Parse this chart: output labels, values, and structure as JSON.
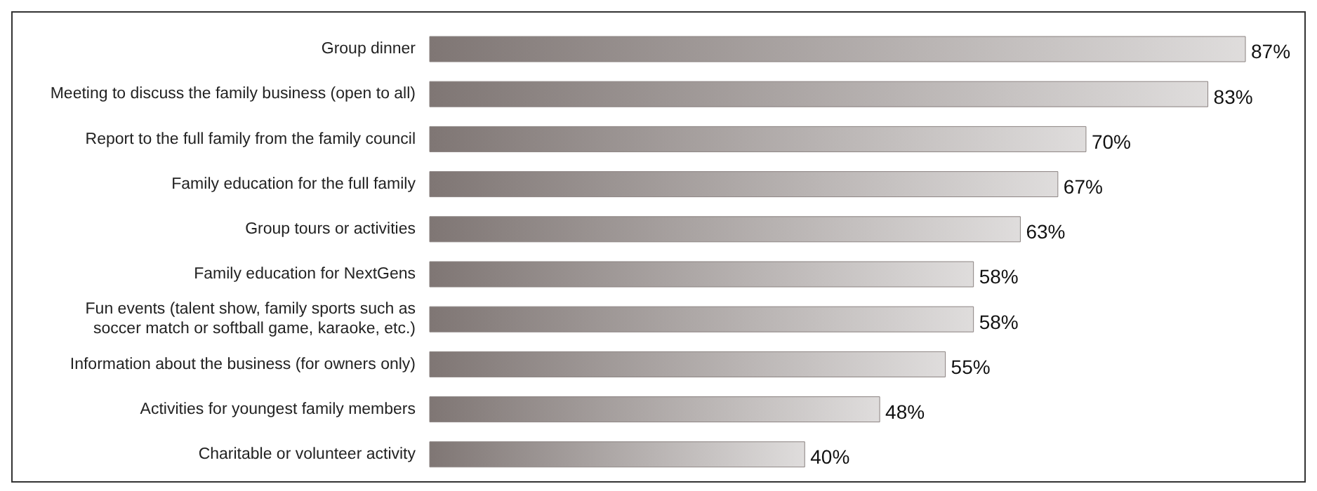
{
  "chart_data": {
    "type": "bar",
    "orientation": "horizontal",
    "categories": [
      "Group dinner",
      "Meeting to discuss the family business (open to all)",
      "Report to the full family from the family council",
      "Family education for the full family",
      "Group tours or activities",
      "Family education for NextGens",
      "Fun events (talent show, family sports such as soccer match or softball game, karaoke, etc.)",
      "Information about the business (for owners only)",
      "Activities for youngest family members",
      "Charitable or volunteer activity"
    ],
    "values": [
      87,
      83,
      70,
      67,
      63,
      58,
      58,
      55,
      48,
      40
    ],
    "value_labels": [
      "87%",
      "83%",
      "70%",
      "67%",
      "63%",
      "58%",
      "58%",
      "55%",
      "48%",
      "40%"
    ],
    "color": "#7f7674"
  }
}
